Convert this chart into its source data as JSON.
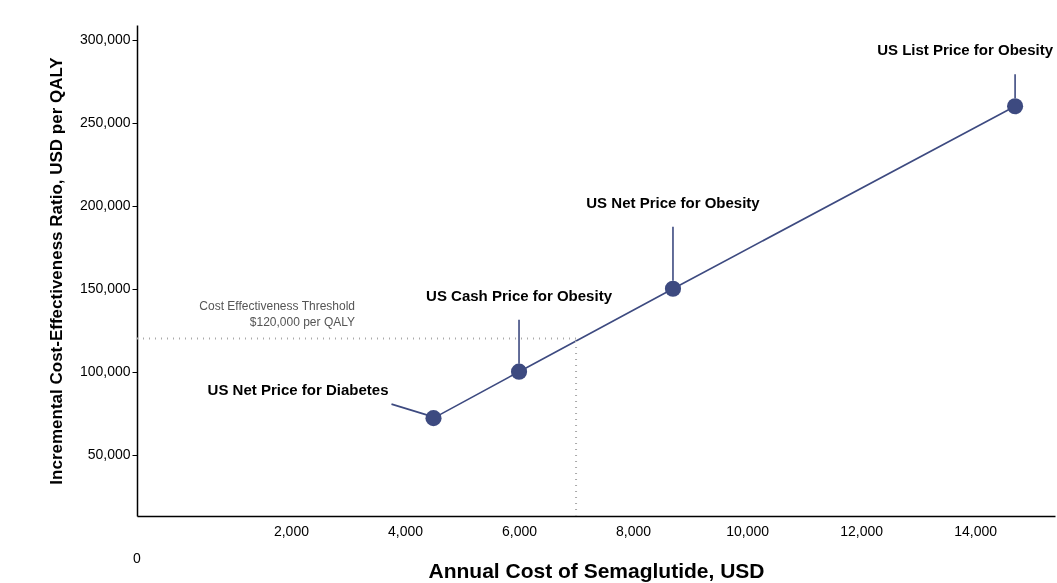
{
  "chart_data": {
    "type": "line",
    "xlabel": "Annual Cost of Semaglutide, USD",
    "ylabel": "Incremental Cost-Effectiveness Ratio, USD per QALY",
    "x": [
      4500,
      6000,
      8700,
      14700
    ],
    "series": [
      {
        "color": "#3d4a80",
        "values": [
          72000,
          100000,
          150000,
          260000
        ]
      }
    ],
    "xlim": [
      -700,
      15400
    ],
    "xticks": [
      {
        "value": 2000,
        "label": "2,000"
      },
      {
        "value": 4000,
        "label": "4,000"
      },
      {
        "value": 6000,
        "label": "6,000"
      },
      {
        "value": 8000,
        "label": "8,000"
      },
      {
        "value": 10000,
        "label": "10,000"
      },
      {
        "value": 12000,
        "label": "12,000"
      },
      {
        "value": 14000,
        "label": "14,000"
      }
    ],
    "ylim": [
      13000,
      309000
    ],
    "yticks": [
      {
        "value": 50000,
        "label": "50,000"
      },
      {
        "value": 100000,
        "label": "100,000"
      },
      {
        "value": 150000,
        "label": "150,000"
      },
      {
        "value": 200000,
        "label": "200,000"
      },
      {
        "value": 250000,
        "label": "250,000"
      },
      {
        "value": 300000,
        "label": "300,000"
      }
    ],
    "grid": false,
    "marker": "circle",
    "line_style": "solid",
    "ref_lines": [
      {
        "axis": "y",
        "value": 120000,
        "label": "Cost Effectiveness Threshold\n$120,000 per QALY",
        "color": "#aaaaaa",
        "line_style": "dotted"
      },
      {
        "axis": "x",
        "value": 7000,
        "color": "#aaaaaa",
        "line_style": "dotted"
      }
    ],
    "annotations": [
      {
        "text": "US Net Price for Diabetes",
        "x": 4500,
        "y": 72000
      },
      {
        "text": "US Cash Price for Obesity",
        "x": 6000,
        "y": 100000
      },
      {
        "text": "US Net Price for Obesity",
        "x": 8700,
        "y": 150000
      },
      {
        "text": "US List Price for Obesity",
        "x": 14700,
        "y": 260000
      },
      "0"
    ]
  }
}
